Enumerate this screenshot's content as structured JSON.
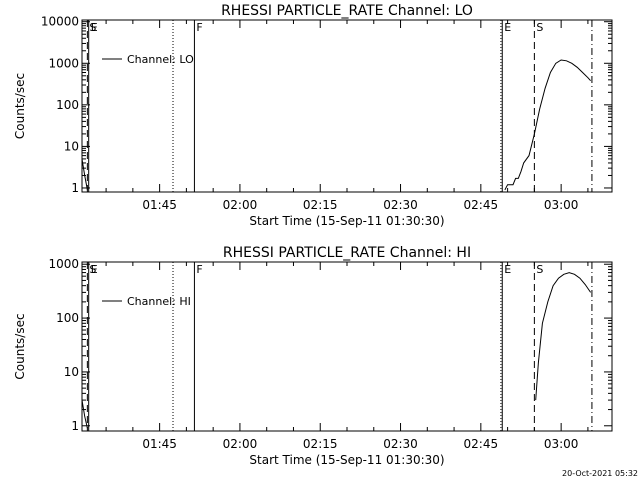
{
  "footer_timestamp": "20-Oct-2021 05:32",
  "chart_data": [
    {
      "type": "line",
      "title": "RHESSI PARTICLE_RATE Channel: LO",
      "xlabel": "Start Time (15-Sep-11 01:30:30)",
      "ylabel": "Counts/sec",
      "y_scale": "log",
      "xlim": [
        "01:30:30",
        "03:09:30"
      ],
      "ylim": [
        0.8,
        11000
      ],
      "x_ticks": [
        "01:45",
        "02:00",
        "02:15",
        "02:30",
        "02:45",
        "03:00"
      ],
      "y_ticks": [
        {
          "value": 1,
          "label": "1"
        },
        {
          "value": 10,
          "label": "10"
        },
        {
          "value": 100,
          "label": "100"
        },
        {
          "value": 1000,
          "label": "1000"
        },
        {
          "value": 10000,
          "label": "10000"
        }
      ],
      "legend": {
        "label": "Channel: LO",
        "position": "top-left"
      },
      "markers": [
        {
          "time": "01:31:30",
          "style": "dashed",
          "label": "S"
        },
        {
          "time": "01:31:45",
          "style": "solid",
          "label": "E"
        },
        {
          "time": "01:47:30",
          "style": "dotted",
          "label": ""
        },
        {
          "time": "01:51:30",
          "style": "solid",
          "label": "F"
        },
        {
          "time": "02:48:45",
          "style": "dotted",
          "label": ""
        },
        {
          "time": "02:49:00",
          "style": "solid",
          "label": "E"
        },
        {
          "time": "02:55:00",
          "style": "dashed",
          "label": "S"
        },
        {
          "time": "03:05:45",
          "style": "dashdot",
          "label": ""
        }
      ],
      "series": [
        {
          "segments": [
            [
              [
                "01:30:30",
                5
              ],
              [
                "01:31:00",
                2
              ],
              [
                "01:31:30",
                0.9
              ]
            ],
            [
              [
                "02:49:30",
                0.9
              ],
              [
                "02:50:00",
                1.2
              ],
              [
                "02:51:00",
                1.2
              ],
              [
                "02:51:30",
                1.7
              ],
              [
                "02:52:00",
                1.7
              ],
              [
                "02:52:30",
                2.5
              ],
              [
                "02:53:00",
                4
              ],
              [
                "02:54:00",
                6
              ],
              [
                "02:55:00",
                20
              ],
              [
                "02:56:00",
                80
              ],
              [
                "02:57:00",
                250
              ],
              [
                "02:58:00",
                600
              ],
              [
                "02:59:00",
                1000
              ],
              [
                "03:00:00",
                1200
              ],
              [
                "03:01:00",
                1150
              ],
              [
                "03:02:00",
                1000
              ],
              [
                "03:03:00",
                800
              ],
              [
                "03:04:00",
                600
              ],
              [
                "03:05:00",
                450
              ],
              [
                "03:05:30",
                380
              ]
            ]
          ]
        }
      ]
    },
    {
      "type": "line",
      "title": "RHESSI PARTICLE_RATE Channel: HI",
      "xlabel": "Start Time (15-Sep-11 01:30:30)",
      "ylabel": "Counts/sec",
      "y_scale": "log",
      "xlim": [
        "01:30:30",
        "03:09:30"
      ],
      "ylim": [
        0.8,
        1100
      ],
      "x_ticks": [
        "01:45",
        "02:00",
        "02:15",
        "02:30",
        "02:45",
        "03:00"
      ],
      "y_ticks": [
        {
          "value": 1,
          "label": "1"
        },
        {
          "value": 10,
          "label": "10"
        },
        {
          "value": 100,
          "label": "100"
        },
        {
          "value": 1000,
          "label": "1000"
        }
      ],
      "legend": {
        "label": "Channel: HI",
        "position": "top-left"
      },
      "markers": [
        {
          "time": "01:31:30",
          "style": "dashed",
          "label": "S"
        },
        {
          "time": "01:31:45",
          "style": "solid",
          "label": "E"
        },
        {
          "time": "01:47:30",
          "style": "dotted",
          "label": ""
        },
        {
          "time": "01:51:30",
          "style": "solid",
          "label": "F"
        },
        {
          "time": "02:48:45",
          "style": "dotted",
          "label": ""
        },
        {
          "time": "02:49:00",
          "style": "solid",
          "label": "E"
        },
        {
          "time": "02:55:00",
          "style": "dashed",
          "label": "S"
        },
        {
          "time": "03:05:45",
          "style": "dashdot",
          "label": ""
        }
      ],
      "series": [
        {
          "segments": [
            [
              [
                "01:30:30",
                3
              ],
              [
                "01:31:00",
                1.5
              ],
              [
                "01:31:30",
                0.9
              ]
            ],
            [
              [
                "02:55:15",
                3
              ],
              [
                "02:55:45",
                15
              ],
              [
                "02:56:30",
                80
              ],
              [
                "02:57:30",
                200
              ],
              [
                "02:58:30",
                400
              ],
              [
                "02:59:30",
                550
              ],
              [
                "03:00:30",
                650
              ],
              [
                "03:01:30",
                700
              ],
              [
                "03:02:30",
                650
              ],
              [
                "03:03:30",
                550
              ],
              [
                "03:04:30",
                420
              ],
              [
                "03:05:30",
                300
              ]
            ]
          ]
        }
      ]
    }
  ]
}
